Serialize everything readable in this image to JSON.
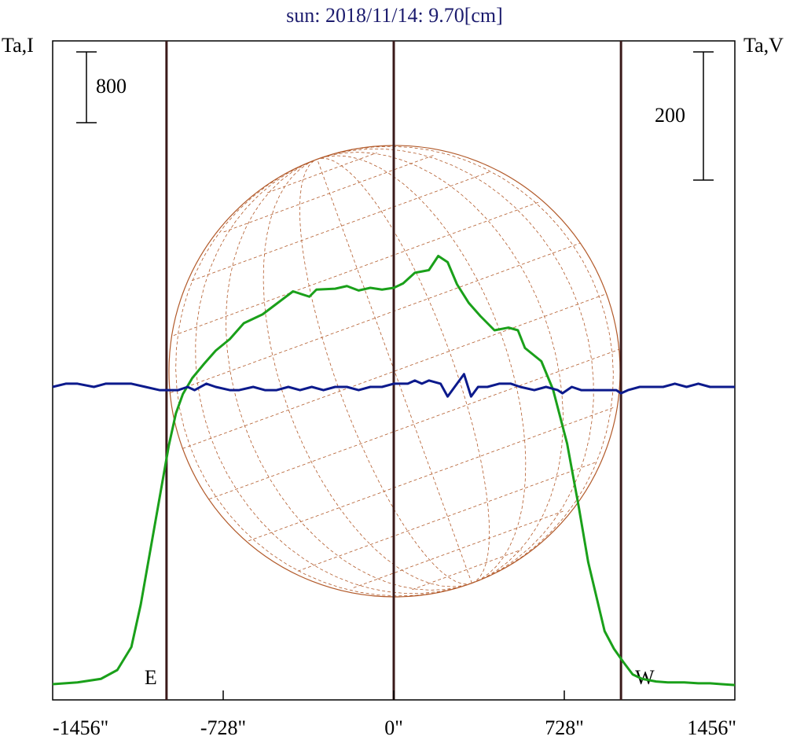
{
  "title": "sun: 2018/11/14: 9.70[cm]",
  "colors": {
    "title": "#1c1c6e",
    "text": "#000000",
    "frame": "#000000",
    "limb_lines": "#3a1a1a",
    "intensity": "#1aa01a",
    "circular": "#0c1a8c",
    "disk": "#b25a2a"
  },
  "chart_data": {
    "type": "line",
    "title": "sun: 2018/11/14: 9.70[cm]",
    "left_axis_label": "Ta,I",
    "right_axis_label": "Ta,V",
    "left_scale_bar": "800",
    "right_scale_bar": "200",
    "x_ticks": [
      "-1456\"",
      "-728\"",
      "0\"",
      "728\"",
      "1456\""
    ],
    "x_tick_values": [
      -1456,
      -728,
      0,
      728,
      1456
    ],
    "xlim": [
      -1456,
      1456
    ],
    "limb_markers": [
      {
        "label": "E",
        "x": -970
      },
      {
        "label": "W",
        "x": 970
      }
    ],
    "center_marker_x": 0,
    "series": [
      {
        "key": "intensity",
        "x": [
          -1456,
          -1350,
          -1250,
          -1180,
          -1120,
          -1080,
          -1040,
          -1000,
          -960,
          -930,
          -900,
          -860,
          -810,
          -760,
          -700,
          -640,
          -560,
          -500,
          -430,
          -360,
          -330,
          -250,
          -200,
          -150,
          -100,
          -50,
          0,
          40,
          90,
          150,
          190,
          230,
          270,
          320,
          370,
          430,
          490,
          530,
          560,
          630,
          680,
          740,
          790,
          830,
          900,
          940,
          980,
          1020,
          1060,
          1120,
          1170,
          1240,
          1300,
          1350,
          1400,
          1456
        ],
        "y": [
          0,
          20,
          60,
          160,
          420,
          900,
          1500,
          2100,
          2700,
          3060,
          3280,
          3460,
          3620,
          3770,
          3900,
          4080,
          4180,
          4300,
          4440,
          4380,
          4460,
          4470,
          4500,
          4450,
          4480,
          4460,
          4480,
          4530,
          4650,
          4680,
          4840,
          4770,
          4520,
          4310,
          4160,
          4000,
          4030,
          4000,
          3800,
          3650,
          3330,
          2720,
          2000,
          1380,
          600,
          400,
          250,
          110,
          60,
          30,
          20,
          20,
          10,
          10,
          0,
          -10
        ],
        "unit_per_scale_bar": 800
      },
      {
        "key": "circular",
        "x": [
          -1456,
          -1400,
          -1350,
          -1280,
          -1230,
          -1180,
          -1120,
          -1060,
          -1000,
          -960,
          -920,
          -880,
          -850,
          -800,
          -760,
          -700,
          -660,
          -600,
          -550,
          -500,
          -450,
          -400,
          -350,
          -300,
          -250,
          -200,
          -150,
          -100,
          -50,
          0,
          30,
          60,
          90,
          120,
          150,
          200,
          230,
          260,
          300,
          330,
          360,
          400,
          450,
          500,
          540,
          600,
          650,
          700,
          720,
          760,
          800,
          850,
          900,
          950,
          970,
          1000,
          1050,
          1100,
          1150,
          1200,
          1250,
          1300,
          1350,
          1400,
          1456
        ],
        "y": [
          0,
          5,
          5,
          0,
          5,
          5,
          5,
          0,
          -5,
          -5,
          -5,
          0,
          -5,
          5,
          0,
          -5,
          -5,
          0,
          -5,
          -5,
          0,
          -5,
          0,
          -5,
          0,
          0,
          -5,
          0,
          0,
          5,
          5,
          5,
          10,
          5,
          10,
          5,
          -15,
          0,
          20,
          -15,
          0,
          0,
          5,
          5,
          0,
          -5,
          0,
          -5,
          -10,
          0,
          -5,
          -5,
          -5,
          -5,
          -10,
          -5,
          0,
          0,
          0,
          5,
          0,
          5,
          0,
          0,
          0
        ],
        "unit_per_scale_bar": 200
      }
    ]
  }
}
